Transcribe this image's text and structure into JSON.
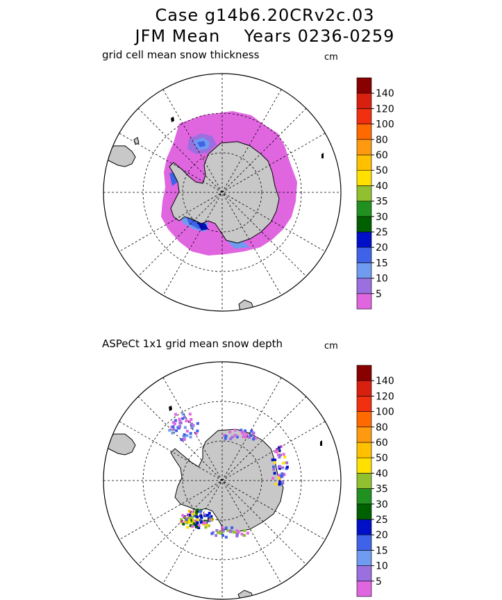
{
  "title": {
    "line1": "Case g14b6.20CRv2c.03",
    "line2": "JFM Mean    Years 0236-0259"
  },
  "panels": [
    {
      "label": "grid cell mean snow thickness",
      "unit": "cm",
      "colorbar": {
        "levels": [
          "5",
          "10",
          "15",
          "20",
          "25",
          "30",
          "35",
          "40",
          "50",
          "60",
          "80",
          "100",
          "120",
          "140"
        ],
        "colors": [
          "#e066e0",
          "#9b6fe0",
          "#6f9bf0",
          "#3f63e8",
          "#0010c8",
          "#006000",
          "#209020",
          "#90c030",
          "#ffe000",
          "#ffc000",
          "#ff9a10",
          "#ff6a00",
          "#f03010",
          "#d82010",
          "#880000"
        ]
      }
    },
    {
      "label": "ASPeCt 1x1 grid mean snow depth",
      "unit": "cm",
      "colorbar": {
        "levels": [
          "5",
          "10",
          "15",
          "20",
          "25",
          "30",
          "35",
          "40",
          "50",
          "60",
          "80",
          "100",
          "120",
          "140"
        ],
        "colors": [
          "#e066e0",
          "#9b6fe0",
          "#6f9bf0",
          "#3f63e8",
          "#0010c8",
          "#006000",
          "#209020",
          "#90c030",
          "#ffe000",
          "#ffc000",
          "#ff9a10",
          "#ff6a00",
          "#f03010",
          "#d82010",
          "#880000"
        ]
      }
    }
  ],
  "style": {
    "land": "#c8c8c8",
    "coast": "#000000",
    "grid": "#000000"
  }
}
